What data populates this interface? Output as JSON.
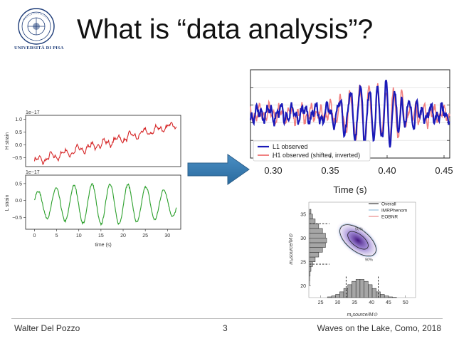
{
  "slide": {
    "title": "What is “data analysis”?",
    "logo_text": "UNIVERSITÀ DI PISA",
    "footer_left": "Walter Del Pozzo",
    "footer_page": "3",
    "footer_right": "Waves on the Lake, Como, 2018"
  },
  "chart_data": [
    {
      "type": "line",
      "id": "h-strain",
      "offset_label": "1e−17",
      "ylabel": "H strain",
      "yticks": [
        "1.0",
        "0.5",
        "0.0",
        "−0.5"
      ],
      "ylim": [
        -0.85,
        1.15
      ],
      "xlim": [
        -2,
        33
      ],
      "color": "#d62728"
    },
    {
      "type": "line",
      "id": "l-strain",
      "offset_label": "1e−17",
      "ylabel": "L strain",
      "xlabel": "time (s)",
      "xticks": [
        "0",
        "5",
        "10",
        "15",
        "20",
        "25",
        "30"
      ],
      "yticks": [
        "0.5",
        "0.0",
        "−0.5"
      ],
      "ylim": [
        -0.85,
        0.75
      ],
      "xlim": [
        -2,
        33
      ],
      "color": "#2ca02c"
    },
    {
      "type": "line",
      "id": "whitened-strain",
      "xlabel": "Time (s)",
      "xticks": [
        "0.30",
        "0.35",
        "0.40",
        "0.45"
      ],
      "xlim": [
        0.28,
        0.455
      ],
      "series": [
        {
          "name": "L1 observed",
          "color": "#1a1ab8"
        },
        {
          "name": "H1 observed (shifted, inverted)",
          "color": "#f08080"
        }
      ],
      "legend_position": "bottom-left"
    },
    {
      "type": "scatter",
      "id": "mass-posterior",
      "xticks": [
        "25",
        "30",
        "35",
        "40",
        "45",
        "50"
      ],
      "yticks": [
        "35",
        "30",
        "25",
        "20"
      ],
      "xlim": [
        21.5,
        53
      ],
      "ylim": [
        17.5,
        37.5
      ],
      "xlabel": "m₁source/M⊙",
      "ylabel": "m₂source/M⊙",
      "contour_labels": [
        "90%",
        "50%"
      ],
      "series": [
        {
          "name": "Overall",
          "color": "#111111"
        },
        {
          "name": "IMRPhenom",
          "color": "#7fb3d5"
        },
        {
          "name": "EOBNR",
          "color": "#e57373"
        }
      ],
      "legend_position": "top-right"
    }
  ]
}
